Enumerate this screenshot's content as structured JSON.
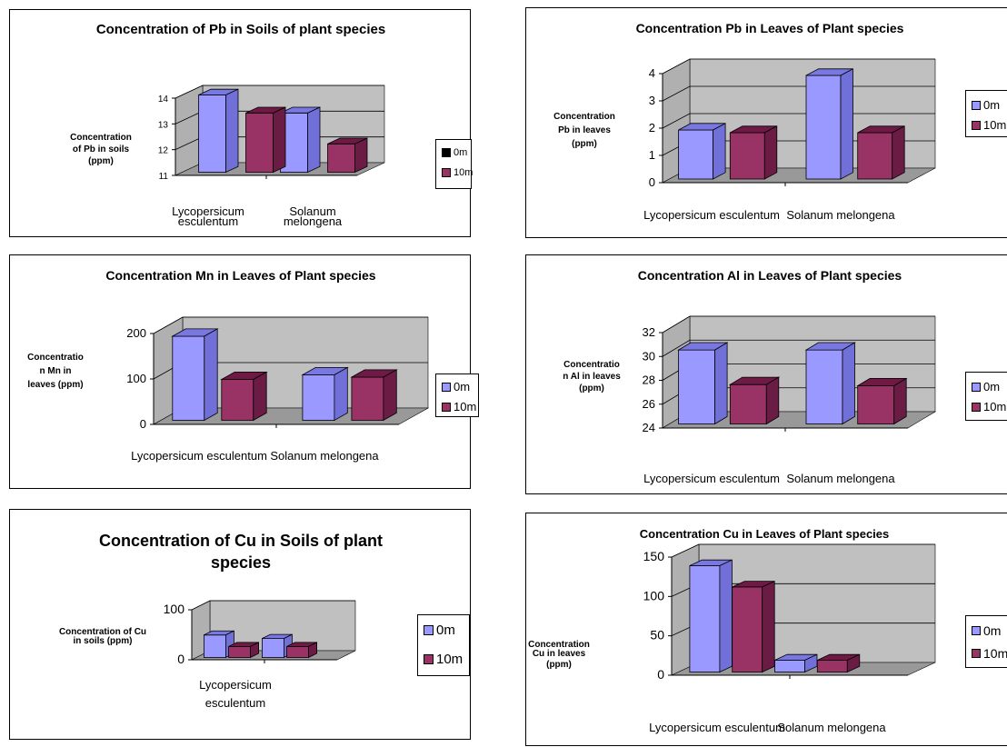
{
  "colors": {
    "s0": "#9999ff",
    "s0_top": "#7878e0",
    "s0_side": "#7070d8",
    "s1": "#993366",
    "s1_top": "#6e1a44",
    "s1_side": "#6a1c44",
    "wall": "#c0c0c0",
    "floor": "#999999"
  },
  "chart_data": [
    {
      "id": "c1",
      "type": "bar",
      "title": "Concentration of Pb in Soils of plant species",
      "ylabel": "Concentration of Pb in soils (ppm)",
      "categories": [
        "Lycopersicum esculentum",
        "Solanum melongena"
      ],
      "ylim": [
        11,
        14
      ],
      "yticks": [
        "11",
        "12",
        "13",
        "14"
      ],
      "series": [
        {
          "name": "0m",
          "values": [
            14.2,
            13.3
          ]
        },
        {
          "name": "10m",
          "values": [
            13.3,
            12.1
          ]
        }
      ]
    },
    {
      "id": "c2",
      "type": "bar",
      "title": "Concentration Pb in Leaves of Plant species",
      "ylabel": "Concentration Pb in leaves (ppm)",
      "categories": [
        "Lycopersicum esculentum",
        "Solanum melongena"
      ],
      "ylim": [
        0,
        4
      ],
      "yticks": [
        "0",
        "1",
        "2",
        "3",
        "4"
      ],
      "series": [
        {
          "name": "0m",
          "values": [
            1.8,
            3.8
          ]
        },
        {
          "name": "10m",
          "values": [
            1.7,
            1.7
          ]
        }
      ]
    },
    {
      "id": "c3",
      "type": "bar",
      "title": "Concentration Mn in Leaves of Plant species",
      "ylabel": "Concentration Mn in leaves (ppm)",
      "categories": [
        "Lycopersicum esculentum",
        "Solanum melongena"
      ],
      "ylim": [
        0,
        200
      ],
      "yticks": [
        "0",
        "100",
        "200"
      ],
      "series": [
        {
          "name": "0m",
          "values": [
            185,
            100
          ]
        },
        {
          "name": "10m",
          "values": [
            90,
            95
          ]
        }
      ]
    },
    {
      "id": "c4",
      "type": "bar",
      "title": "Concentration Al in Leaves of Plant species",
      "ylabel": "Concentration Al in leaves (ppm)",
      "categories": [
        "Lycopersicum esculentum",
        "Solanum melongena"
      ],
      "ylim": [
        24,
        32
      ],
      "yticks": [
        "24",
        "26",
        "28",
        "30",
        "32"
      ],
      "series": [
        {
          "name": "0m",
          "values": [
            30.2,
            30.2
          ]
        },
        {
          "name": "10m",
          "values": [
            27.3,
            27.2
          ]
        }
      ]
    },
    {
      "id": "c5",
      "type": "bar",
      "title": "Concentration of Cu in Soils of plant species",
      "ylabel": "Concentration of Cu in soils (ppm)",
      "categories": [
        "Lycopersicum esculentum",
        ""
      ],
      "ylim": [
        0,
        100
      ],
      "yticks": [
        "0",
        "100"
      ],
      "series": [
        {
          "name": "0m",
          "values": [
            45,
            38
          ]
        },
        {
          "name": "10m",
          "values": [
            22,
            22
          ]
        }
      ]
    },
    {
      "id": "c6",
      "type": "bar",
      "title": "Concentration Cu in Leaves of Plant species",
      "ylabel": "Concentration Cu in leaves (ppm)",
      "categories": [
        "Lycopersicum esculentum",
        "Solanum melongena"
      ],
      "ylim": [
        0,
        150
      ],
      "yticks": [
        "0",
        "50",
        "100",
        "150"
      ],
      "series": [
        {
          "name": "0m",
          "values": [
            135,
            15
          ]
        },
        {
          "name": "10m",
          "values": [
            108,
            15
          ]
        }
      ]
    }
  ]
}
